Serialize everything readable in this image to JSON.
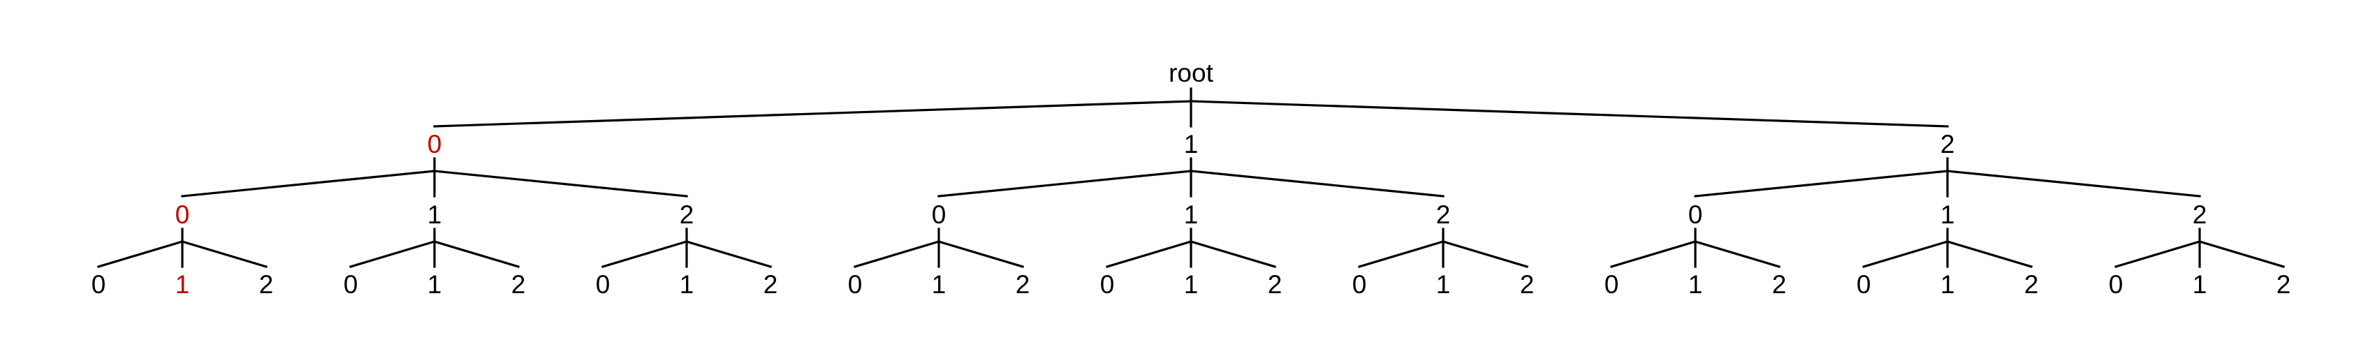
{
  "colors": {
    "edge": "#000000",
    "label": "#000000",
    "highlight": "#c00000",
    "background": "#ffffff"
  },
  "tree": {
    "label": "root",
    "children": [
      {
        "label": "0",
        "highlight": true,
        "children": [
          {
            "label": "0",
            "highlight": true,
            "children": [
              {
                "label": "0"
              },
              {
                "label": "1",
                "highlight": true
              },
              {
                "label": "2"
              }
            ]
          },
          {
            "label": "1",
            "children": [
              {
                "label": "0"
              },
              {
                "label": "1"
              },
              {
                "label": "2"
              }
            ]
          },
          {
            "label": "2",
            "children": [
              {
                "label": "0"
              },
              {
                "label": "1"
              },
              {
                "label": "2"
              }
            ]
          }
        ]
      },
      {
        "label": "1",
        "children": [
          {
            "label": "0",
            "children": [
              {
                "label": "0"
              },
              {
                "label": "1"
              },
              {
                "label": "2"
              }
            ]
          },
          {
            "label": "1",
            "children": [
              {
                "label": "0"
              },
              {
                "label": "1"
              },
              {
                "label": "2"
              }
            ]
          },
          {
            "label": "2",
            "children": [
              {
                "label": "0"
              },
              {
                "label": "1"
              },
              {
                "label": "2"
              }
            ]
          }
        ]
      },
      {
        "label": "2",
        "children": [
          {
            "label": "0",
            "children": [
              {
                "label": "0"
              },
              {
                "label": "1"
              },
              {
                "label": "2"
              }
            ]
          },
          {
            "label": "1",
            "children": [
              {
                "label": "0"
              },
              {
                "label": "1"
              },
              {
                "label": "2"
              }
            ]
          },
          {
            "label": "2",
            "children": [
              {
                "label": "0"
              },
              {
                "label": "1"
              },
              {
                "label": "2"
              }
            ]
          }
        ]
      }
    ]
  }
}
